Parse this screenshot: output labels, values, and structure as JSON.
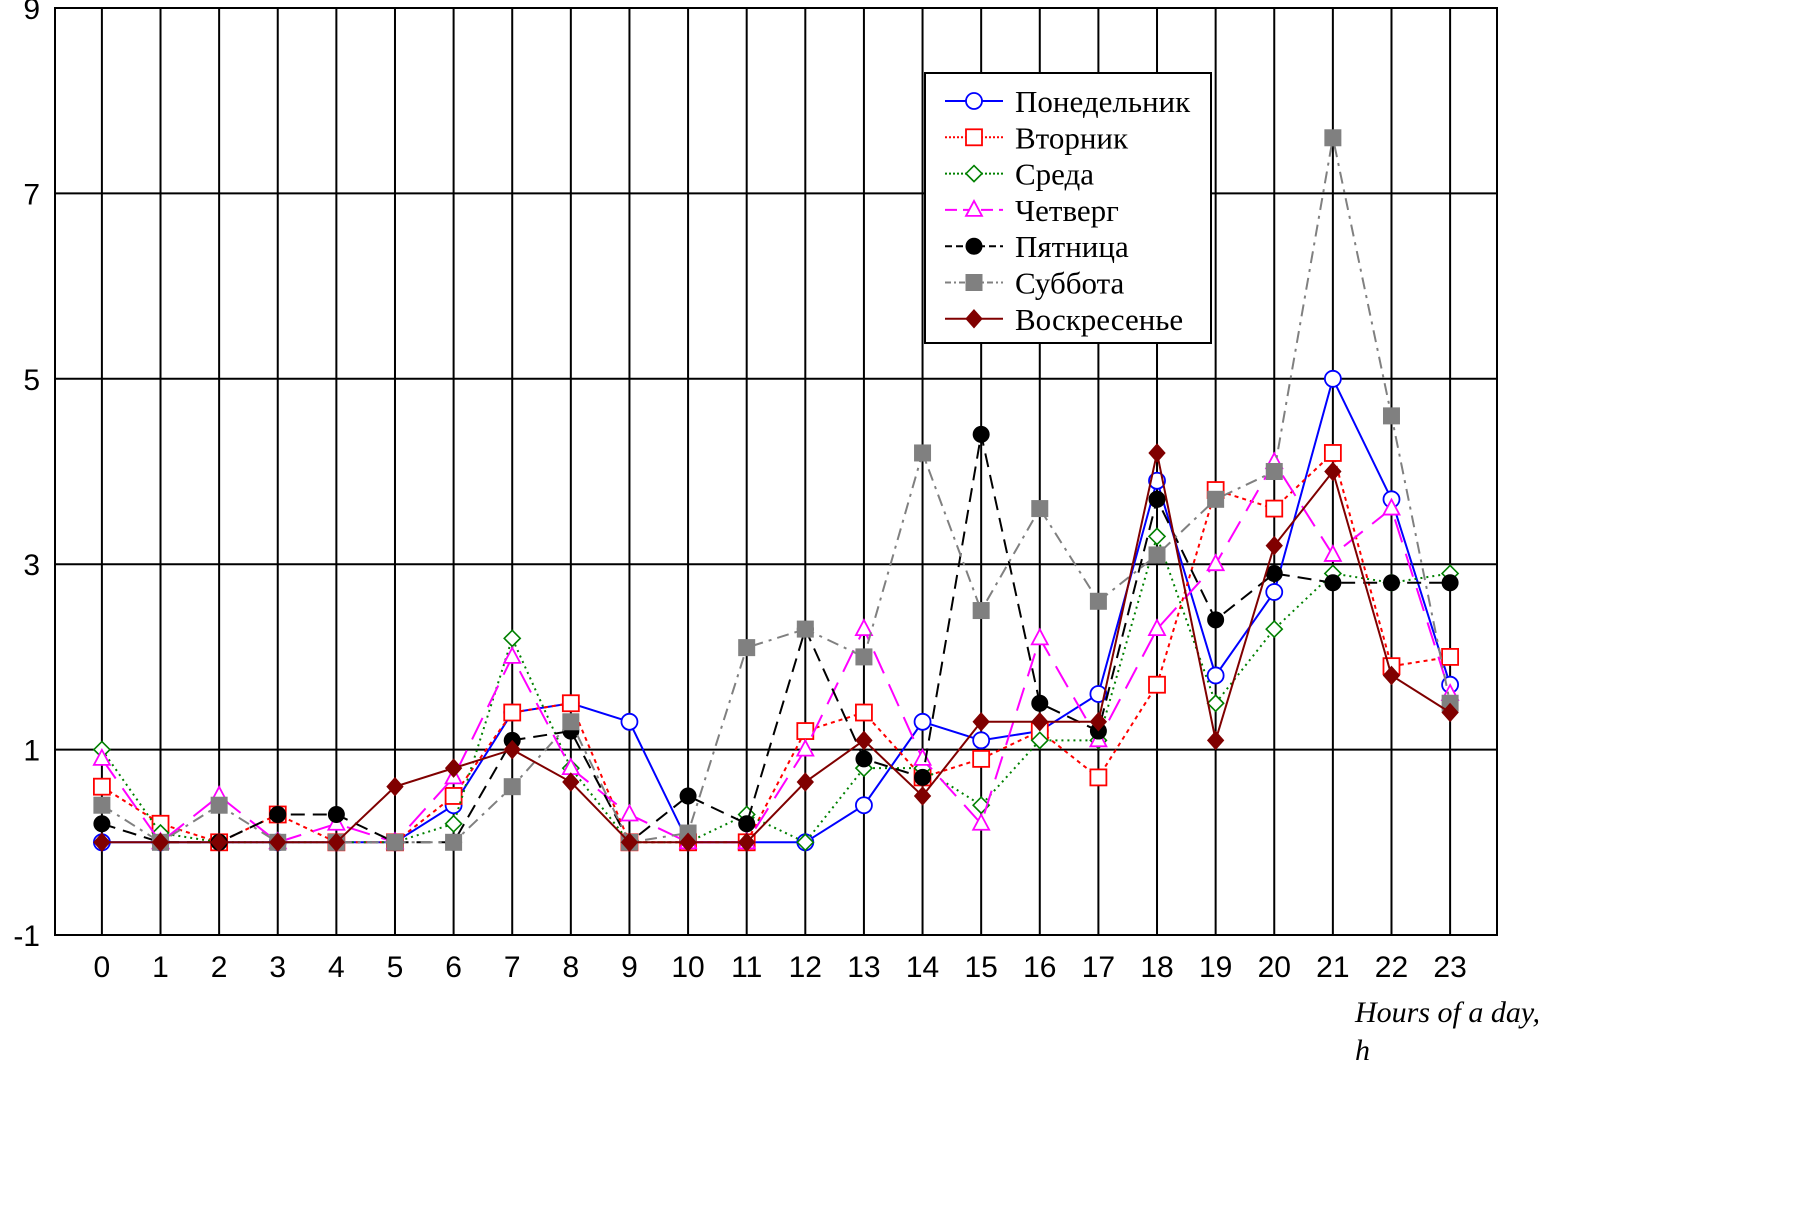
{
  "chart_data": {
    "type": "line",
    "title": "",
    "xlabel_lines": [
      "Hours of a day,",
      "h"
    ],
    "ylabel": "",
    "x": [
      0,
      1,
      2,
      3,
      4,
      5,
      6,
      7,
      8,
      9,
      10,
      11,
      12,
      13,
      14,
      15,
      16,
      17,
      18,
      19,
      20,
      21,
      22,
      23
    ],
    "xlim": [
      -0.8,
      23.8
    ],
    "ylim": [
      -1,
      9
    ],
    "yticks": [
      -1,
      1,
      3,
      5,
      7,
      9
    ],
    "grid": true,
    "legend_position": "top-right",
    "series": [
      {
        "name": "Понедельник",
        "color": "#0000ff",
        "dash": "",
        "marker": "circle-open",
        "values": [
          0,
          0,
          0,
          0,
          0,
          0,
          0.4,
          1.4,
          1.5,
          1.3,
          0,
          0,
          0,
          0.4,
          1.3,
          1.1,
          1.2,
          1.6,
          3.9,
          1.8,
          2.7,
          5.0,
          3.7,
          1.7
        ]
      },
      {
        "name": "Вторник",
        "color": "#ff0000",
        "dash": "4,4",
        "marker": "square-open",
        "values": [
          0.6,
          0.2,
          0,
          0.3,
          0,
          0,
          0.5,
          1.4,
          1.5,
          0,
          0,
          0,
          1.2,
          1.4,
          0.7,
          0.9,
          1.2,
          0.7,
          1.7,
          3.8,
          3.6,
          4.2,
          1.9,
          2.0
        ]
      },
      {
        "name": "Среда",
        "color": "#008000",
        "dash": "2,4",
        "marker": "diamond-open",
        "values": [
          1.0,
          0.1,
          0,
          0,
          0,
          0,
          0.2,
          2.2,
          0.8,
          0,
          0,
          0.3,
          0,
          0.8,
          0.8,
          0.4,
          1.1,
          1.1,
          3.3,
          1.5,
          2.3,
          2.9,
          2.8,
          2.9
        ]
      },
      {
        "name": "Четверг",
        "color": "#ff00ff",
        "dash": "24,12",
        "marker": "triangle-open",
        "values": [
          0.9,
          0,
          0.5,
          0,
          0.2,
          0,
          0.7,
          2.0,
          0.8,
          0.3,
          0,
          0,
          1.0,
          2.3,
          0.9,
          0.2,
          2.2,
          1.1,
          2.3,
          3.0,
          4.1,
          3.1,
          3.6,
          1.6
        ]
      },
      {
        "name": "Пятница",
        "color": "#000000",
        "dash": "14,8",
        "marker": "circle-filled",
        "values": [
          0.2,
          0,
          0,
          0.3,
          0.3,
          0,
          0,
          1.1,
          1.2,
          0,
          0.5,
          0.2,
          2.3,
          0.9,
          0.7,
          4.4,
          1.5,
          1.2,
          3.7,
          2.4,
          2.9,
          2.8,
          2.8,
          2.8
        ]
      },
      {
        "name": "Суббота",
        "color": "#808080",
        "dash": "12,6,3,6",
        "marker": "square-filled",
        "values": [
          0.4,
          0,
          0.4,
          0,
          0,
          0,
          0,
          0.6,
          1.3,
          0,
          0.1,
          2.1,
          2.3,
          2.0,
          4.2,
          2.5,
          3.6,
          2.6,
          3.1,
          3.7,
          4.0,
          7.6,
          4.6,
          1.5
        ]
      },
      {
        "name": "Воскресенье",
        "color": "#800000",
        "dash": "",
        "marker": "diamond-filled",
        "values": [
          0,
          0,
          0,
          0,
          0,
          0.6,
          0.8,
          1.0,
          0.65,
          0,
          0,
          0,
          0.65,
          1.1,
          0.5,
          1.3,
          1.3,
          1.3,
          4.2,
          1.1,
          3.2,
          4.0,
          1.8,
          1.4
        ]
      }
    ]
  }
}
